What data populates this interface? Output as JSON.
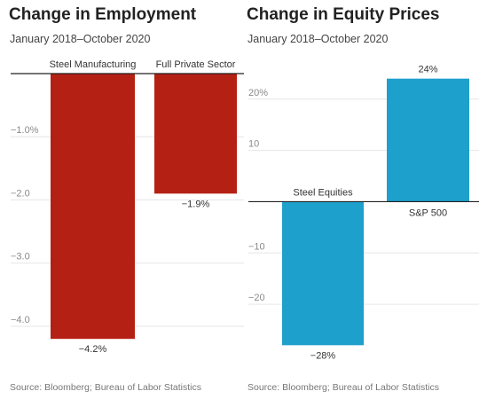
{
  "chart_data": [
    {
      "type": "bar",
      "title": "Change in Employment",
      "subtitle": "January 2018–October 2020",
      "source": "Source: Bloomberg; Bureau of Labor Statistics",
      "categories": [
        "Steel Manufacturing",
        "Full Private Sector"
      ],
      "values": [
        -4.2,
        -1.9
      ],
      "value_labels": [
        "−4.2%",
        "−1.9%"
      ],
      "y_ticks": [
        -1,
        -2,
        -3,
        -4
      ],
      "y_tick_labels": [
        "−1.0%",
        "−2.0",
        "−3.0",
        "−4.0"
      ],
      "ylim": [
        -4.45,
        0
      ],
      "grid": true,
      "bar_color": "#b52014"
    },
    {
      "type": "bar",
      "title": "Change in Equity Prices",
      "subtitle": "January 2018–October 2020",
      "source": "Source: Bloomberg; Bureau of Labor Statistics",
      "categories": [
        "Steel Equities",
        "S&P 500"
      ],
      "values": [
        -28,
        24
      ],
      "value_labels": [
        "−28%",
        "24%"
      ],
      "y_ticks": [
        20,
        10,
        -10,
        -20
      ],
      "y_tick_labels": [
        "20%",
        "10",
        "−10",
        "−20"
      ],
      "ylim": [
        -29.5,
        25.5
      ],
      "grid": true,
      "bar_color": "#1ea0cc"
    }
  ]
}
